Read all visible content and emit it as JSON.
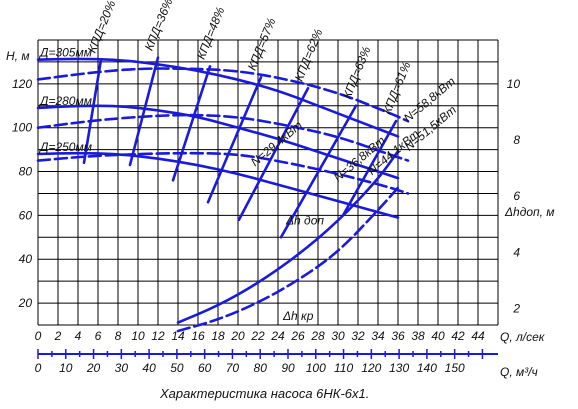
{
  "chart_data": {
    "type": "line",
    "title": "Характеристика насоса 6НК-6х1.",
    "x_axis": {
      "label": "Q, л/сек",
      "ticks": [
        "0",
        "2",
        "4",
        "6",
        "8",
        "10",
        "12",
        "14",
        "16",
        "18",
        "20",
        "22",
        "24",
        "26",
        "28",
        "30",
        "32",
        "34",
        "36",
        "38",
        "40",
        "42",
        "44"
      ],
      "range": [
        0,
        46
      ]
    },
    "x2_axis": {
      "label": "Q, м³/ч",
      "ticks": [
        "0",
        "10",
        "20",
        "30",
        "40",
        "50",
        "60",
        "70",
        "80",
        "90",
        "100",
        "110",
        "120",
        "130",
        "140",
        "150"
      ],
      "range": [
        0,
        165.6
      ]
    },
    "y_axis": {
      "label": "H, м",
      "ticks": [
        "20",
        "40",
        "60",
        "80",
        "100",
        "120"
      ],
      "range": [
        10,
        140
      ]
    },
    "y2_axis": {
      "label": "Δhдоп, м",
      "ticks": [
        "2",
        "4",
        "6",
        "8",
        "10"
      ],
      "range": [
        0,
        12
      ]
    },
    "grid": true,
    "series": [
      {
        "name": "Д=305мм",
        "style": "solid",
        "x": [
          0,
          4,
          8,
          12,
          16,
          20,
          24,
          28,
          32,
          36
        ],
        "y": [
          131,
          131.5,
          131,
          129,
          126,
          122,
          117,
          110,
          103,
          96
        ]
      },
      {
        "name": "Д=280мм",
        "style": "solid",
        "x": [
          0,
          4,
          8,
          12,
          16,
          20,
          24,
          28,
          32,
          36
        ],
        "y": [
          109,
          110,
          110,
          108,
          105,
          100,
          95,
          89,
          83,
          77
        ]
      },
      {
        "name": "Д=250мм",
        "style": "solid",
        "x": [
          0,
          4,
          8,
          12,
          16,
          20,
          24,
          28,
          32,
          36
        ],
        "y": [
          88,
          88.5,
          88,
          86,
          83,
          79,
          74,
          69,
          64,
          59
        ]
      },
      {
        "name": "Д=305мм",
        "style": "dashed",
        "x": [
          0,
          5,
          10,
          15,
          20,
          25,
          30,
          35,
          37
        ],
        "y": [
          122,
          125,
          127,
          127,
          126,
          122,
          116,
          107,
          103
        ]
      },
      {
        "name": "Д=280мм",
        "style": "dashed",
        "x": [
          0,
          5,
          10,
          15,
          20,
          25,
          30,
          35,
          37
        ],
        "y": [
          100,
          103,
          105,
          106,
          105,
          101,
          96,
          88,
          85
        ]
      },
      {
        "name": "Д=250мм",
        "style": "dashed",
        "x": [
          0,
          5,
          10,
          15,
          20,
          25,
          30,
          35,
          37
        ],
        "y": [
          85,
          87,
          88,
          88.5,
          88,
          84,
          79,
          73,
          70
        ]
      },
      {
        "name": "Δh доп",
        "style": "solid",
        "x": [
          14,
          18,
          22,
          26,
          30,
          34,
          36
        ],
        "y2": [
          1.5,
          2.1,
          2.9,
          3.9,
          5.1,
          6.6,
          7.6
        ]
      },
      {
        "name": "Δh кр",
        "style": "dashed",
        "x": [
          14,
          18,
          22,
          26,
          30,
          34,
          36
        ],
        "y2": [
          1.2,
          1.6,
          2.2,
          3.0,
          4.0,
          5.5,
          6.3
        ]
      }
    ],
    "efficiency_labels": [
      "КПД=20%",
      "КПД=36%",
      "КПД=48%",
      "КПД=57%",
      "КПД=62%",
      "КПД=63%",
      "КПД=61%"
    ],
    "efficiency_lines": [
      {
        "x": [
          6.3,
          4.6
        ],
        "y": [
          131,
          84
        ]
      },
      {
        "x": [
          12.0,
          9.2
        ],
        "y": [
          132,
          83
        ]
      },
      {
        "x": [
          17.2,
          13.5
        ],
        "y": [
          128,
          76
        ]
      },
      {
        "x": [
          22.3,
          17.0
        ],
        "y": [
          123,
          66
        ]
      },
      {
        "x": [
          27.0,
          20.1
        ],
        "y": [
          118,
          58
        ]
      },
      {
        "x": [
          31.8,
          24.3
        ],
        "y": [
          110,
          50
        ]
      },
      {
        "x": [
          35.8,
          30.5
        ],
        "y": [
          103,
          60
        ]
      }
    ],
    "power_labels": [
      "N=58,8кВт",
      "N=51,5кВт",
      "N=44,1кВт",
      "N=36,8кВт",
      "N=29,4кВт"
    ],
    "power_ends": [
      {
        "x": 36.6,
        "y": 104
      },
      {
        "x": 36.7,
        "y": 91
      },
      {
        "x": 33.0,
        "y": 80
      },
      {
        "x": 29.6,
        "y": 77
      },
      {
        "x": 21.3,
        "y": 84
      }
    ],
    "y2_labels": [
      "Δhдоп, м"
    ],
    "curve_labels": [
      "Δh доп",
      "Δh кр"
    ]
  }
}
